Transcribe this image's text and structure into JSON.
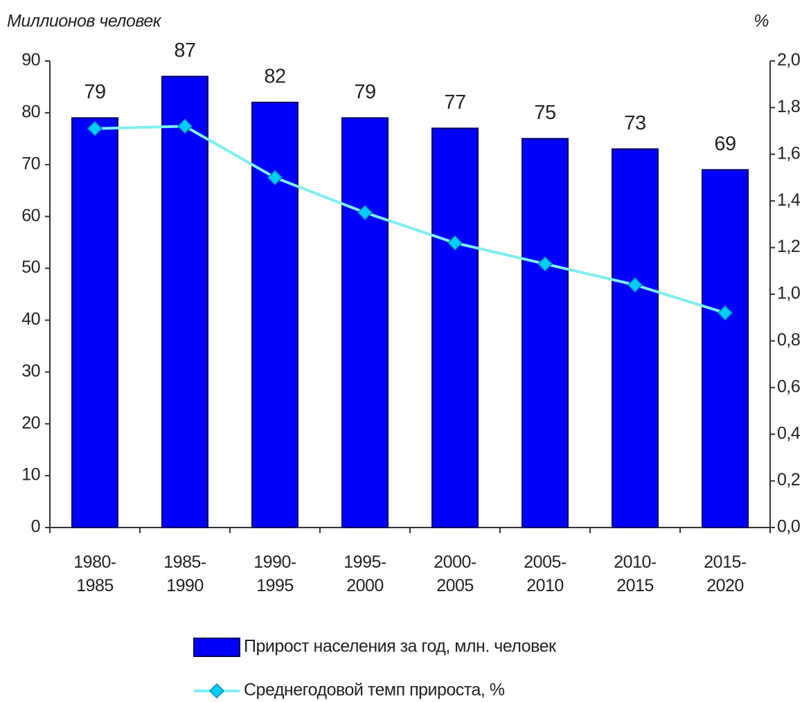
{
  "chart_data": {
    "type": "bar_line",
    "y_label": "Миллионов человек",
    "y2_label": "%",
    "categories": [
      "1980-\n1985",
      "1985-\n1990",
      "1990-\n1995",
      "1995-\n2000",
      "2000-\n2005",
      "2005-\n2010",
      "2010-\n2015",
      "2015-\n2020"
    ],
    "series": [
      {
        "name": "Прирост населения за год, млн. человек",
        "type": "bar",
        "color": "#0000ff",
        "values": [
          79,
          87,
          82,
          79,
          77,
          75,
          73,
          69
        ]
      },
      {
        "name": "Среднегодовой темп прироста, %",
        "type": "line",
        "axis": "y2",
        "color": "#00ccff",
        "values": [
          1.71,
          1.72,
          1.5,
          1.35,
          1.22,
          1.13,
          1.04,
          0.92
        ]
      }
    ],
    "ylim": [
      0,
      90
    ],
    "yticks": [
      0,
      10,
      20,
      30,
      40,
      50,
      60,
      70,
      80,
      90
    ],
    "y2lim": [
      0,
      2
    ],
    "y2ticks": [
      {
        "value": 0,
        "label": "0,0"
      },
      {
        "value": 0.2,
        "label": "0,2"
      },
      {
        "value": 0.4,
        "label": "0,4"
      },
      {
        "value": 0.6,
        "label": "0,6"
      },
      {
        "value": 0.8,
        "label": "0,8"
      },
      {
        "value": 1.0,
        "label": "1,0"
      },
      {
        "value": 1.2,
        "label": "1,2"
      },
      {
        "value": 1.4,
        "label": "1,4"
      },
      {
        "value": 1.6,
        "label": "1,6"
      },
      {
        "value": 1.8,
        "label": "1,8"
      },
      {
        "value": 2.0,
        "label": "2,0"
      }
    ]
  }
}
